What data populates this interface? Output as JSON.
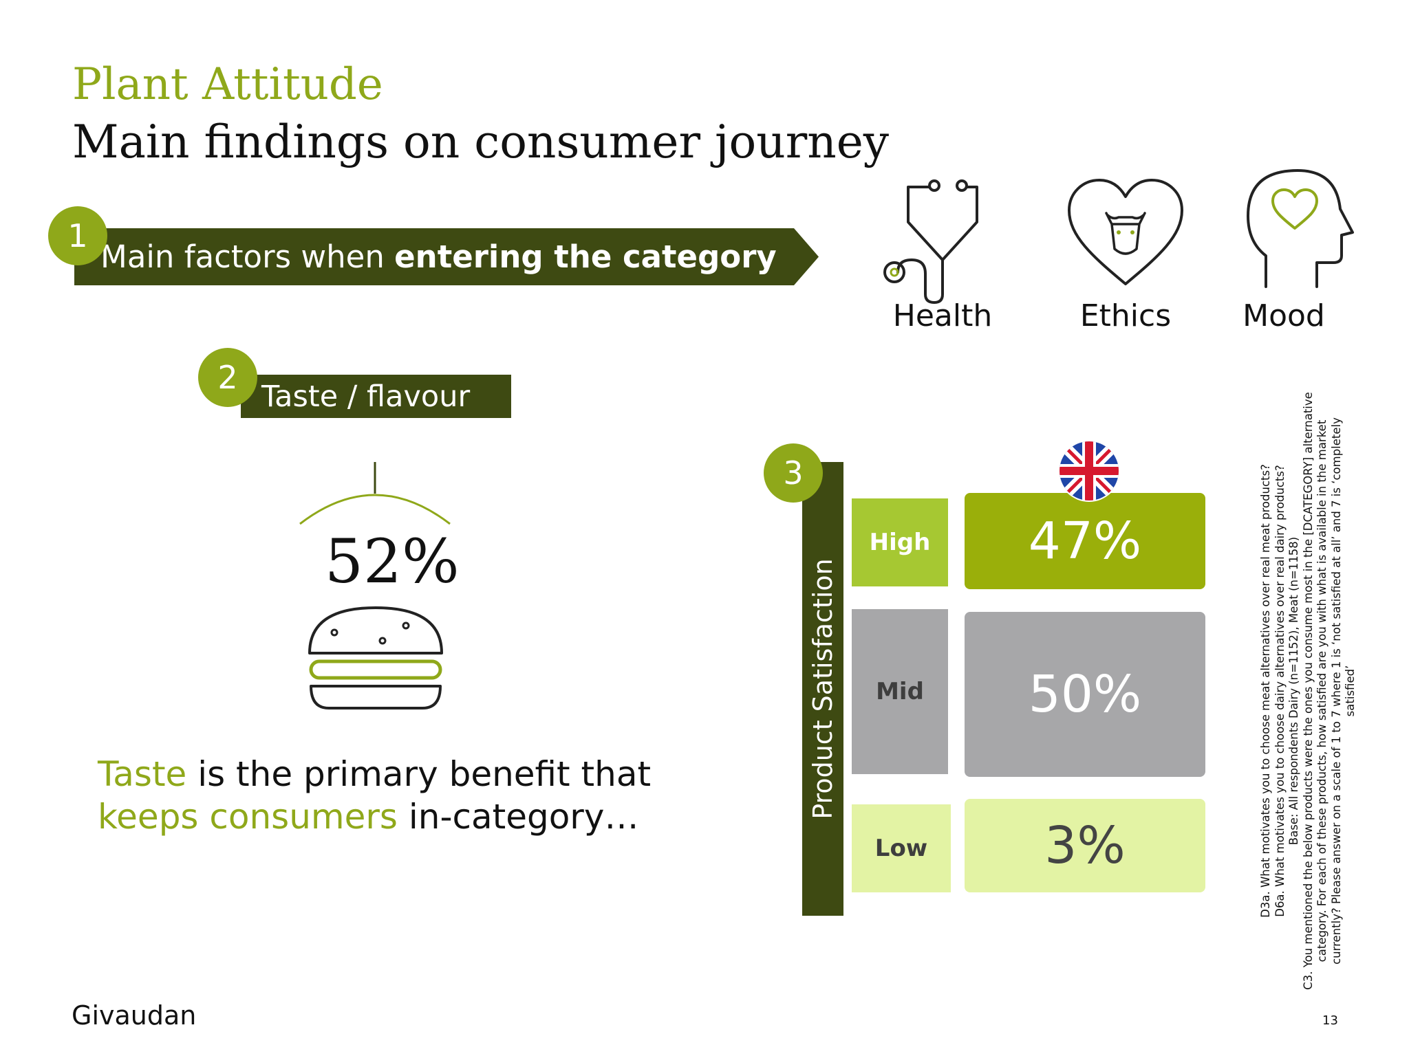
{
  "header": {
    "supertitle": "Plant Attitude",
    "title": "Main findings on consumer journey"
  },
  "finding1": {
    "number": "1",
    "label_pre": "Main factors when ",
    "label_bold": "entering the category",
    "factors": [
      {
        "label": "Health",
        "icon": "stethoscope-icon"
      },
      {
        "label": "Ethics",
        "icon": "heart-cow-icon"
      },
      {
        "label": "Mood",
        "icon": "head-heart-icon"
      }
    ]
  },
  "finding2": {
    "number": "2",
    "label": "Taste / flavour",
    "value": "52%",
    "icon": "burger-icon",
    "summary": {
      "w1": "Taste",
      "t1": " is the primary benefit that",
      "w2": "keeps consumers",
      "t2": " in-category…"
    }
  },
  "finding3": {
    "number": "3",
    "axis_label": "Product Satisfaction",
    "flag_icon": "uk-flag-icon",
    "levels": [
      {
        "label": "High",
        "value": "47%"
      },
      {
        "label": "Mid",
        "value": "50%"
      },
      {
        "label": "Low",
        "value": "3%"
      }
    ]
  },
  "colors": {
    "brand_green": "#8fa81a",
    "dark_green": "#3e4a12",
    "high_green": "#9aaf0a",
    "light_green": "#a6c832",
    "mid_grey": "#a7a7a9",
    "pale_green": "#e3f3a4"
  },
  "footnote": {
    "lines": [
      "D3a. What motivates you to choose meat alternatives over real meat products?",
      "D6a. What motivates you to choose dairy alternatives over real dairy products?",
      "Base: All respondents Dairy (n=1152), Meat (n=1158)",
      "C3. You mentioned the below products were the ones you consume most in the [DCATEGORY] alternative category. For each of these products, how satisfied are you with what is available in the market currently? Please answer on a scale of 1 to 7 where 1 is ‘not satisfied at all’ and 7 is ‘completely satisfied’"
    ]
  },
  "footer": {
    "logo": "Givaudan",
    "page_number": "13"
  }
}
